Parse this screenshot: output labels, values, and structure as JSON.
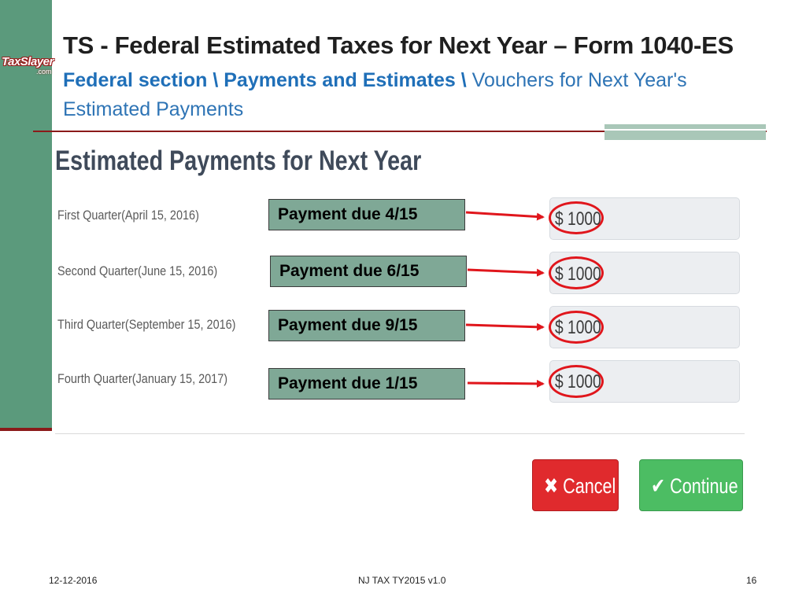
{
  "brand": {
    "logo_text": "TaxSlayer",
    "logo_sub": ".com"
  },
  "slide": {
    "title": "TS - Federal Estimated Taxes for Next Year – Form 1040-ES",
    "breadcrumb_bold_1": "Federal section \\",
    "breadcrumb_bold_2": "Payments and Estimates \\",
    "breadcrumb_rest": "Vouchers for Next Year's Estimated Payments"
  },
  "form": {
    "heading": "Estimated Payments for Next Year",
    "rows": [
      {
        "label": "First Quarter(April 15, 2016)",
        "value": "$ 1000",
        "callout": "Payment due 4/15"
      },
      {
        "label": "Second Quarter(June 15, 2016)",
        "value": "$ 1000",
        "callout": "Payment due 6/15"
      },
      {
        "label": "Third Quarter(September 15, 2016)",
        "value": "$ 1000",
        "callout": "Payment due 9/15"
      },
      {
        "label": "Fourth Quarter(January 15, 2017)",
        "value": "$ 1000",
        "callout": "Payment due 1/15"
      }
    ],
    "cancel_label": "Cancel",
    "continue_label": "Continue"
  },
  "icons": {
    "cancel": "x-icon",
    "continue": "checkmark-icon"
  },
  "colors": {
    "sidebar": "#5b9a7c",
    "accent_red": "#8b1a1a",
    "callout_bg": "#7fa896",
    "cancel": "#e02a2d",
    "continue": "#4cbd63"
  },
  "footer": {
    "date": "12-12-2016",
    "center": "NJ TAX TY2015 v1.0",
    "page": "16"
  }
}
